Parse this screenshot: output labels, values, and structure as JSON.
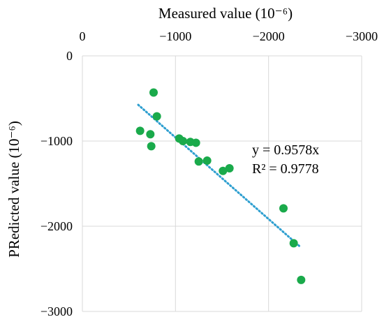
{
  "chart_data": {
    "type": "scatter",
    "title": "",
    "xlabel": "Measured value (10⁻⁶)",
    "ylabel": "PRedicted value (10⁻⁶)",
    "x_axis_position": "top",
    "x_reversed": true,
    "xlim": [
      0,
      -3000
    ],
    "ylim": [
      -3000,
      0
    ],
    "x_ticks": [
      0,
      -1000,
      -2000,
      -3000
    ],
    "y_ticks": [
      0,
      -1000,
      -2000,
      -3000
    ],
    "x_tick_labels": [
      "0",
      "−1000",
      "−2000",
      "−3000"
    ],
    "y_tick_labels": [
      "0",
      "−1000",
      "−2000",
      "−3000"
    ],
    "grid": true,
    "marker_color": "#1aaa4b",
    "trendline_color": "#2e9fd0",
    "series": [
      {
        "points": [
          [
            -765,
            -430
          ],
          [
            -800,
            -710
          ],
          [
            -620,
            -880
          ],
          [
            -730,
            -920
          ],
          [
            -740,
            -1060
          ],
          [
            -1040,
            -970
          ],
          [
            -1080,
            -1000
          ],
          [
            -1160,
            -1010
          ],
          [
            -1220,
            -1020
          ],
          [
            -1250,
            -1240
          ],
          [
            -1340,
            -1230
          ],
          [
            -1510,
            -1350
          ],
          [
            -1580,
            -1320
          ],
          [
            -2160,
            -1790
          ],
          [
            -2270,
            -2200
          ],
          [
            -2350,
            -2630
          ]
        ]
      }
    ],
    "trendline": {
      "slope": 0.9578,
      "x_range": [
        -600,
        -2330
      ],
      "equation": "y = 0.9578x",
      "r2": "R² = 0.9778"
    }
  }
}
